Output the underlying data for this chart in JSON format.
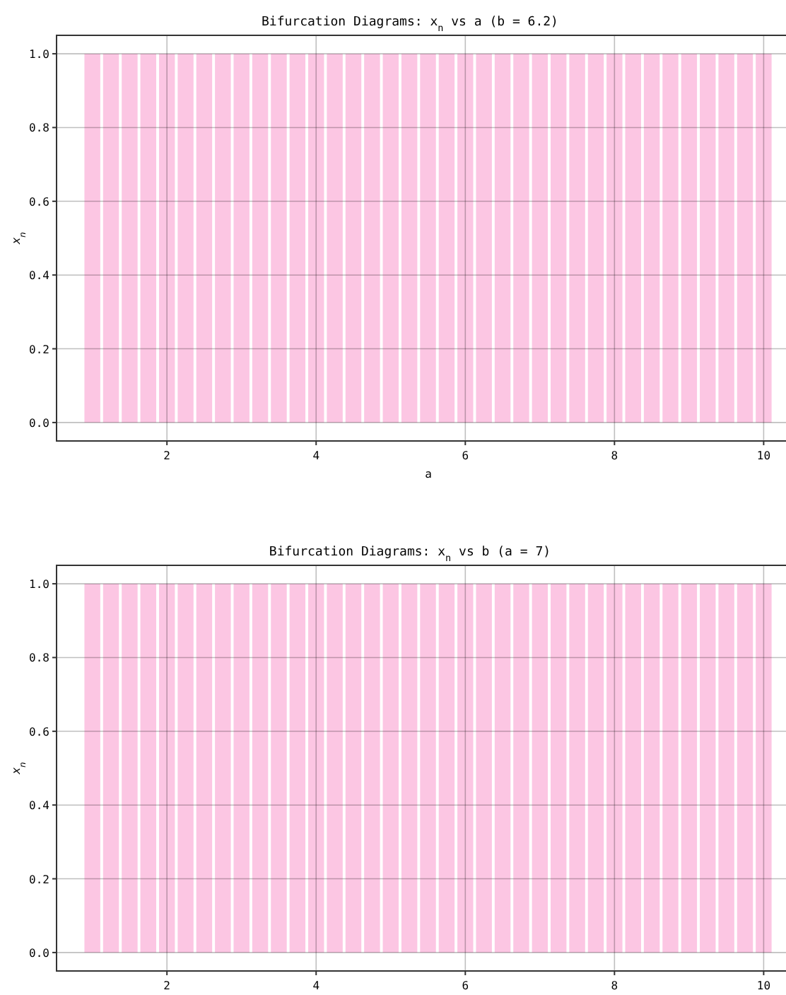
{
  "chart_data": [
    {
      "type": "bar",
      "title": "Bifurcation Diagrams: x$_{n}$ vs a (b = 6.2)",
      "xlabel": "a",
      "ylabel": "x$_{n}$",
      "x": [
        1,
        1.25,
        1.5,
        1.75,
        2,
        2.25,
        2.5,
        2.75,
        3,
        3.25,
        3.5,
        3.75,
        4,
        4.25,
        4.5,
        4.75,
        5,
        5.25,
        5.5,
        5.75,
        6,
        6.25,
        6.5,
        6.75,
        7,
        7.25,
        7.5,
        7.75,
        8,
        8.25,
        8.5,
        8.75,
        9,
        9.25,
        9.5,
        9.75,
        10
      ],
      "series": [
        {
          "color": "#fcc6e3",
          "values": [
            1,
            1,
            1,
            1,
            1,
            1,
            1,
            1,
            1,
            1,
            1,
            1,
            1,
            1,
            1,
            1,
            1,
            1,
            1,
            1,
            1,
            1,
            1,
            1,
            1,
            1,
            1,
            1,
            1,
            1,
            1,
            1,
            1,
            1,
            1,
            1,
            1
          ]
        }
      ],
      "xlim": [
        0.52,
        10.47
      ],
      "ylim": [
        -0.05,
        1.05
      ],
      "xticks": [
        2,
        4,
        6,
        8,
        10
      ],
      "yticks": [
        {
          "value": 0,
          "label": "0.0"
        },
        {
          "value": 0.2,
          "label": "0.2"
        },
        {
          "value": 0.4,
          "label": "0.4"
        },
        {
          "value": 0.6,
          "label": "0.6"
        },
        {
          "value": 0.8,
          "label": "0.8"
        },
        {
          "value": 1,
          "label": "1.0"
        }
      ],
      "grid": true
    },
    {
      "type": "bar",
      "title": "Bifurcation Diagrams: x$_{n}$ vs b (a = 7)",
      "ylabel": "x$_{n}$",
      "x": [
        1,
        1.25,
        1.5,
        1.75,
        2,
        2.25,
        2.5,
        2.75,
        3,
        3.25,
        3.5,
        3.75,
        4,
        4.25,
        4.5,
        4.75,
        5,
        5.25,
        5.5,
        5.75,
        6,
        6.25,
        6.5,
        6.75,
        7,
        7.25,
        7.5,
        7.75,
        8,
        8.25,
        8.5,
        8.75,
        9,
        9.25,
        9.5,
        9.75,
        10
      ],
      "series": [
        {
          "color": "#fcc6e3",
          "values": [
            1,
            1,
            1,
            1,
            1,
            1,
            1,
            1,
            1,
            1,
            1,
            1,
            1,
            1,
            1,
            1,
            1,
            1,
            1,
            1,
            1,
            1,
            1,
            1,
            1,
            1,
            1,
            1,
            1,
            1,
            1,
            1,
            1,
            1,
            1,
            1,
            1
          ]
        }
      ],
      "xlim": [
        0.52,
        10.47
      ],
      "ylim": [
        -0.05,
        1.05
      ],
      "xticks": [
        2,
        4,
        6,
        8,
        10
      ],
      "yticks": [
        {
          "value": 0,
          "label": "0.0"
        },
        {
          "value": 0.2,
          "label": "0.2"
        },
        {
          "value": 0.4,
          "label": "0.4"
        },
        {
          "value": 0.6,
          "label": "0.6"
        },
        {
          "value": 0.8,
          "label": "0.8"
        },
        {
          "value": 1,
          "label": "1.0"
        }
      ],
      "grid": true
    }
  ]
}
